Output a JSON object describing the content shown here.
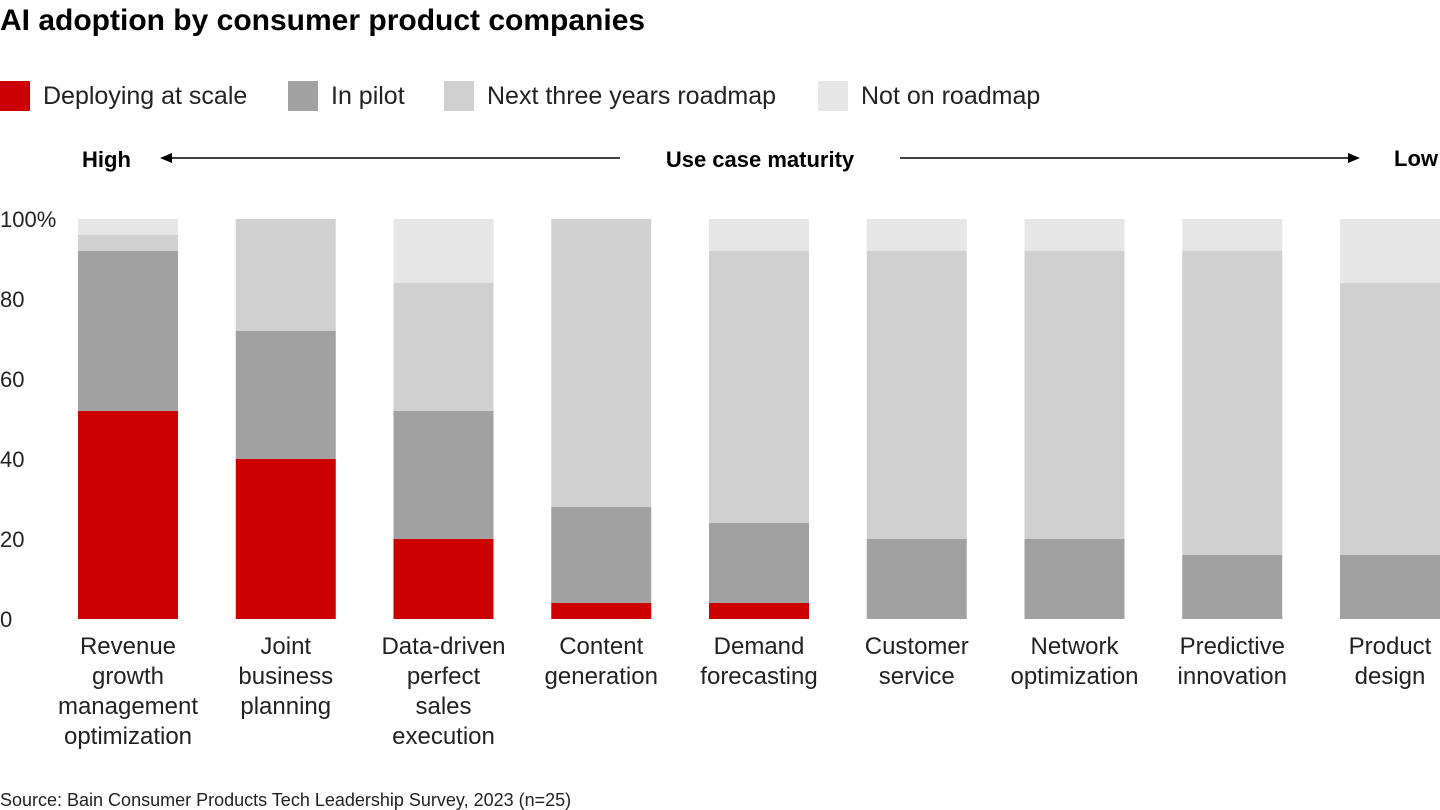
{
  "chart_data": {
    "type": "bar",
    "stacked": true,
    "title": "AI adoption by consumer product companies",
    "source": "Source: Bain Consumer Products Tech Leadership Survey, 2023 (n=25)",
    "maturity_axis": {
      "label": "Use case maturity",
      "left": "High",
      "right": "Low"
    },
    "categories": [
      "Revenue growth management optimization",
      "Joint business planning",
      "Data-driven perfect sales execution",
      "Content generation",
      "Demand forecasting",
      "Customer service",
      "Network optimization",
      "Predictive innovation",
      "Product design"
    ],
    "category_lines": [
      [
        "Revenue",
        "growth",
        "management",
        "optimization"
      ],
      [
        "Joint",
        "business",
        "planning"
      ],
      [
        "Data-driven",
        "perfect",
        "sales",
        "execution"
      ],
      [
        "Content",
        "generation"
      ],
      [
        "Demand",
        "forecasting"
      ],
      [
        "Customer",
        "service"
      ],
      [
        "Network",
        "optimization"
      ],
      [
        "Predictive",
        "innovation"
      ],
      [
        "Product",
        "design"
      ]
    ],
    "series": [
      {
        "name": "Deploying at scale",
        "color": "#cc0000",
        "values": [
          52,
          40,
          20,
          4,
          4,
          0,
          0,
          0,
          0
        ]
      },
      {
        "name": "In pilot",
        "color": "#a1a1a1",
        "values": [
          40,
          32,
          32,
          24,
          20,
          20,
          20,
          16,
          16
        ]
      },
      {
        "name": "Next three years roadmap",
        "color": "#d0d0d0",
        "values": [
          4,
          28,
          32,
          72,
          68,
          72,
          72,
          76,
          68
        ]
      },
      {
        "name": "Not on roadmap",
        "color": "#e6e6e6",
        "values": [
          4,
          0,
          16,
          0,
          8,
          8,
          8,
          8,
          16
        ]
      }
    ],
    "ylim": [
      0,
      100
    ],
    "yticks": [
      "0",
      "20",
      "40",
      "60",
      "80",
      "100%"
    ],
    "ytick_values": [
      0,
      20,
      40,
      60,
      80,
      100
    ],
    "legend_position": "top-left",
    "grid": false
  }
}
